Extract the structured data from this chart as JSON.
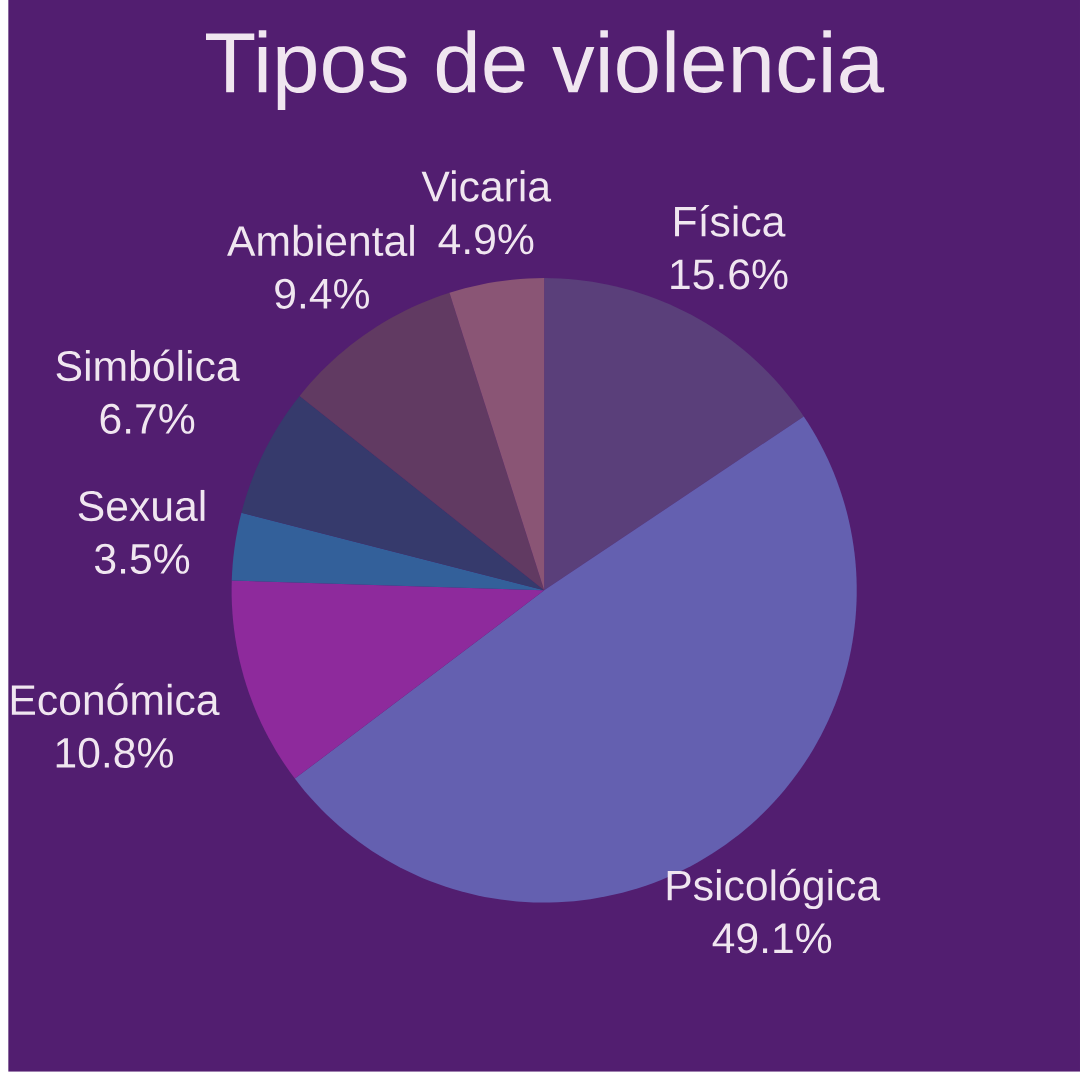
{
  "chart_data": {
    "type": "pie",
    "title": "Tipos de violencia",
    "categories": [
      "Física",
      "Psicológica",
      "Económica",
      "Sexual",
      "Simbólica",
      "Ambiental",
      "Vicaria"
    ],
    "values": [
      15.6,
      49.1,
      10.8,
      3.5,
      6.7,
      9.4,
      4.9
    ],
    "colors": [
      "#5a3f7a",
      "#6460b0",
      "#8e2a9c",
      "#33609a",
      "#363a6c",
      "#613a62",
      "#8a5575"
    ],
    "value_labels": [
      "15.6%",
      "49.1%",
      "10.8%",
      "3.5%",
      "6.7%",
      "9.4%",
      "4.9%"
    ]
  }
}
